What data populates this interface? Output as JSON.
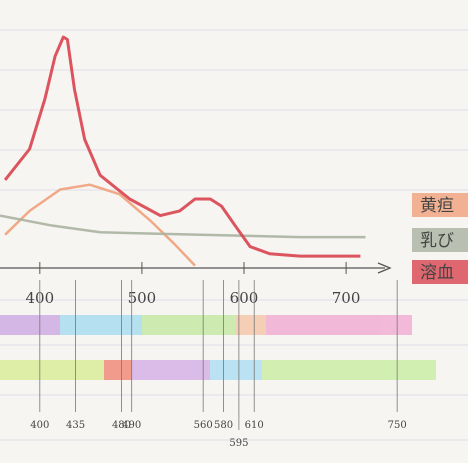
{
  "chart_data": {
    "type": "line",
    "series": [
      {
        "name": "黄疸",
        "color": "#f0a07a",
        "x": [
          366,
          390,
          420,
          449,
          478,
          508,
          532,
          552
        ],
        "values": [
          14,
          24,
          33,
          35,
          31,
          20,
          10,
          1
        ]
      },
      {
        "name": "乳び",
        "color": "#a9b3a0",
        "x": [
          361,
          410,
          459,
          557,
          655,
          719
        ],
        "values": [
          22,
          18,
          15,
          14,
          13,
          13
        ]
      },
      {
        "name": "溶血",
        "color": "#d8434e",
        "x": [
          366,
          390,
          405,
          415,
          423,
          427,
          434,
          444,
          459,
          488,
          518,
          537,
          552,
          567,
          578,
          591,
          606,
          625,
          655,
          714
        ],
        "values": [
          37,
          50,
          71,
          89,
          97,
          96,
          75,
          54,
          39,
          29,
          22,
          24,
          29,
          29,
          26,
          18,
          9,
          6,
          5,
          5
        ]
      }
    ],
    "xlim": [
      361,
      743
    ],
    "xticks": [
      400,
      500,
      600,
      700
    ],
    "ylim": [
      0,
      100
    ],
    "wavelength_marks": [
      400,
      435,
      480,
      490,
      560,
      580,
      610,
      750,
      595
    ]
  }
}
